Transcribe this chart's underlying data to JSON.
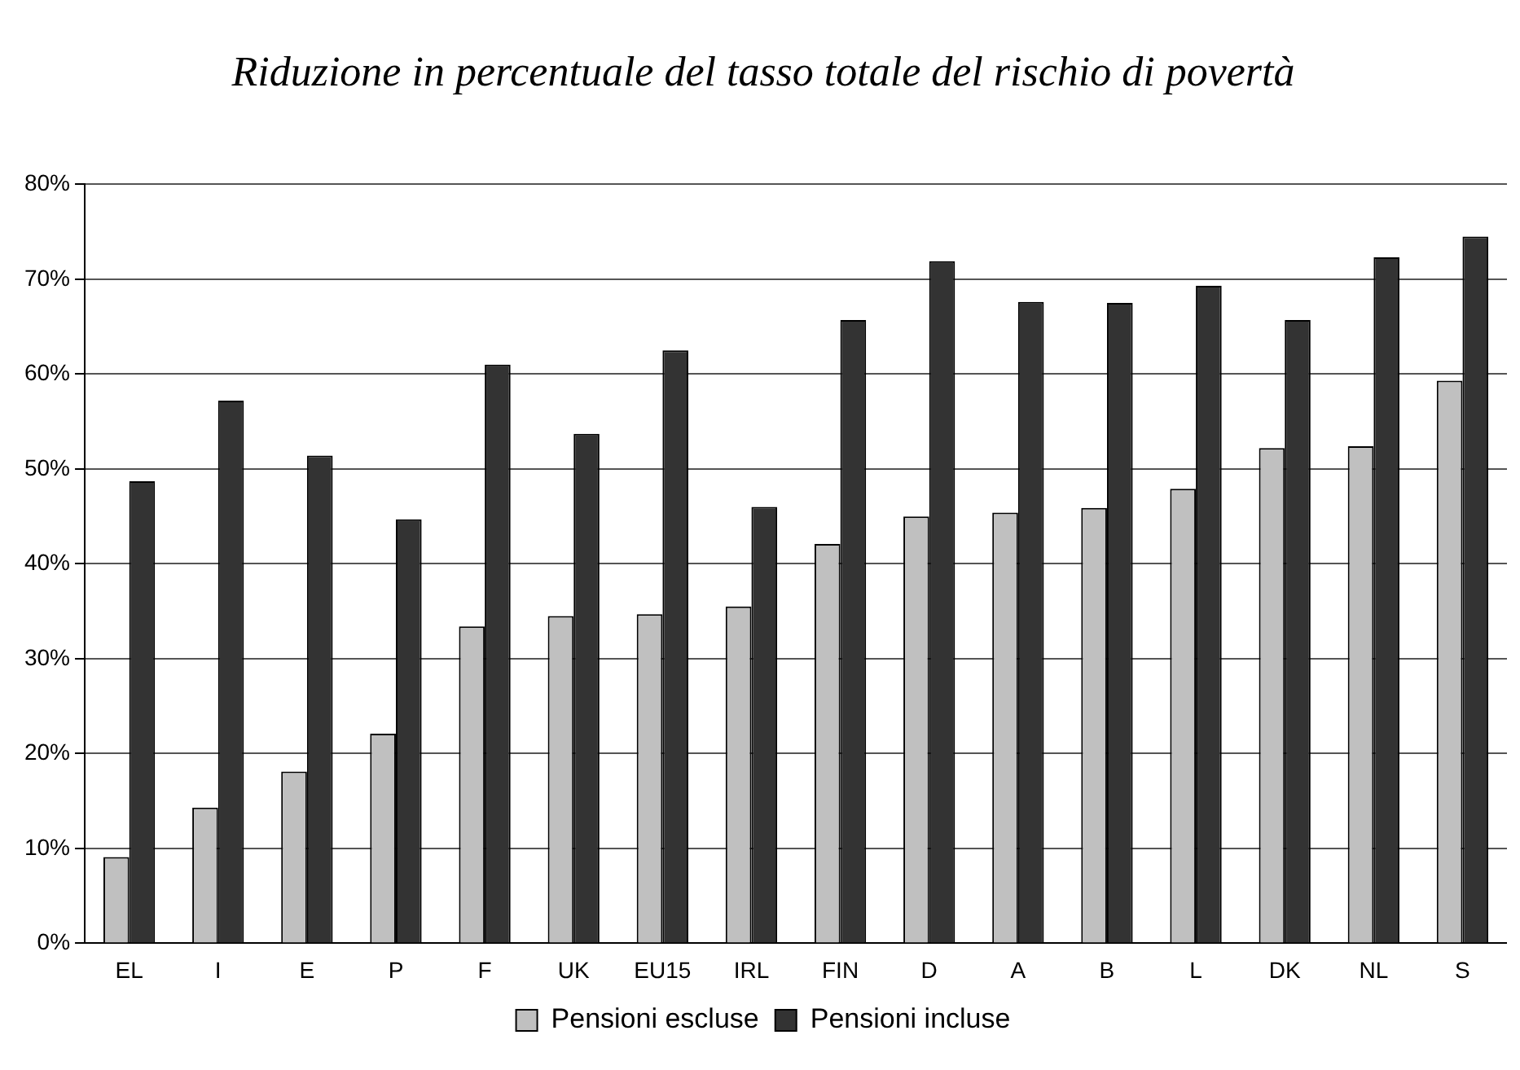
{
  "chart_data": {
    "type": "bar",
    "title": "Riduzione in percentuale del tasso totale del rischio di povertà",
    "categories": [
      "EL",
      "I",
      "E",
      "P",
      "F",
      "UK",
      "EU15",
      "IRL",
      "FIN",
      "D",
      "A",
      "B",
      "L",
      "DK",
      "NL",
      "S"
    ],
    "series": [
      {
        "name": "Pensioni escluse",
        "color": "#c0c0c0",
        "values": [
          9.1,
          14.3,
          18.1,
          22.1,
          33.4,
          34.5,
          34.7,
          35.5,
          42.1,
          45.0,
          45.4,
          45.9,
          47.9,
          52.2,
          52.4,
          59.3
        ]
      },
      {
        "name": "Pensioni incluse",
        "color": "#333333",
        "values": [
          48.7,
          57.2,
          51.4,
          44.7,
          61.0,
          53.7,
          62.5,
          46.0,
          65.7,
          71.9,
          67.6,
          67.5,
          69.3,
          65.7,
          72.3,
          74.5
        ]
      }
    ],
    "ylim": [
      0,
      80
    ],
    "yticks": [
      {
        "value": 0,
        "label": "0%"
      },
      {
        "value": 10,
        "label": "10%"
      },
      {
        "value": 20,
        "label": "20%"
      },
      {
        "value": 30,
        "label": "30%"
      },
      {
        "value": 40,
        "label": "40%"
      },
      {
        "value": 50,
        "label": "50%"
      },
      {
        "value": 60,
        "label": "60%"
      },
      {
        "value": 70,
        "label": "70%"
      },
      {
        "value": 80,
        "label": "80%"
      }
    ],
    "grid": "y",
    "legend": "bottom"
  }
}
